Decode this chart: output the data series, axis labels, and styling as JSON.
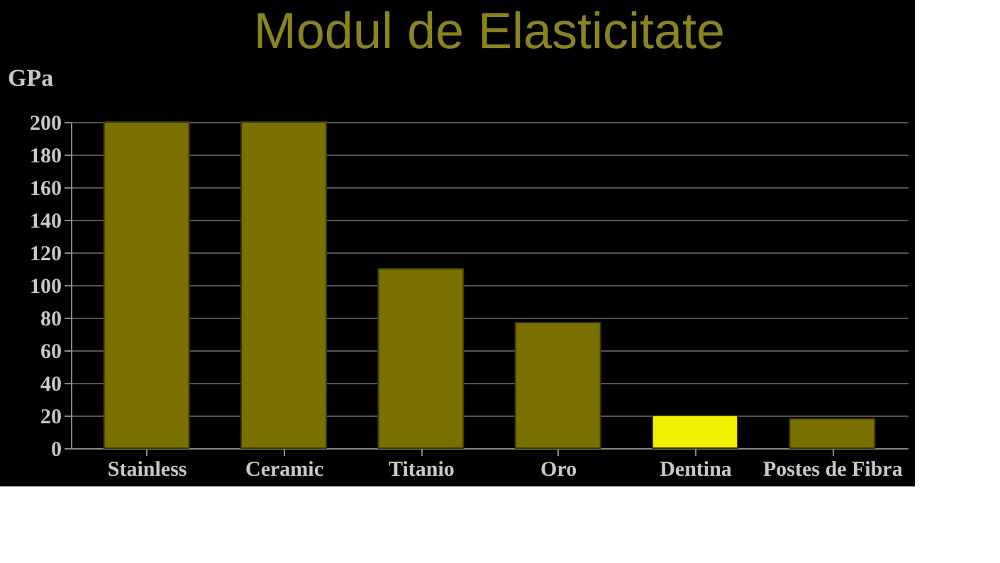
{
  "chart_data": {
    "type": "bar",
    "title": "Modul de Elasticitate",
    "ylabel": "GPa",
    "categories": [
      "Stainless",
      "Ceramic",
      "Titanio",
      "Oro",
      "Dentina",
      "Postes de Fibra"
    ],
    "values": [
      200,
      200,
      110,
      77,
      20,
      18
    ],
    "colors": [
      "#7a7000",
      "#7a7000",
      "#7a7000",
      "#7a7000",
      "#f0f000",
      "#7a7000"
    ],
    "ylim": [
      0,
      200
    ],
    "yticks": [
      0,
      20,
      40,
      60,
      80,
      100,
      120,
      140,
      160,
      180,
      200
    ],
    "grid": "y",
    "legend": false
  }
}
